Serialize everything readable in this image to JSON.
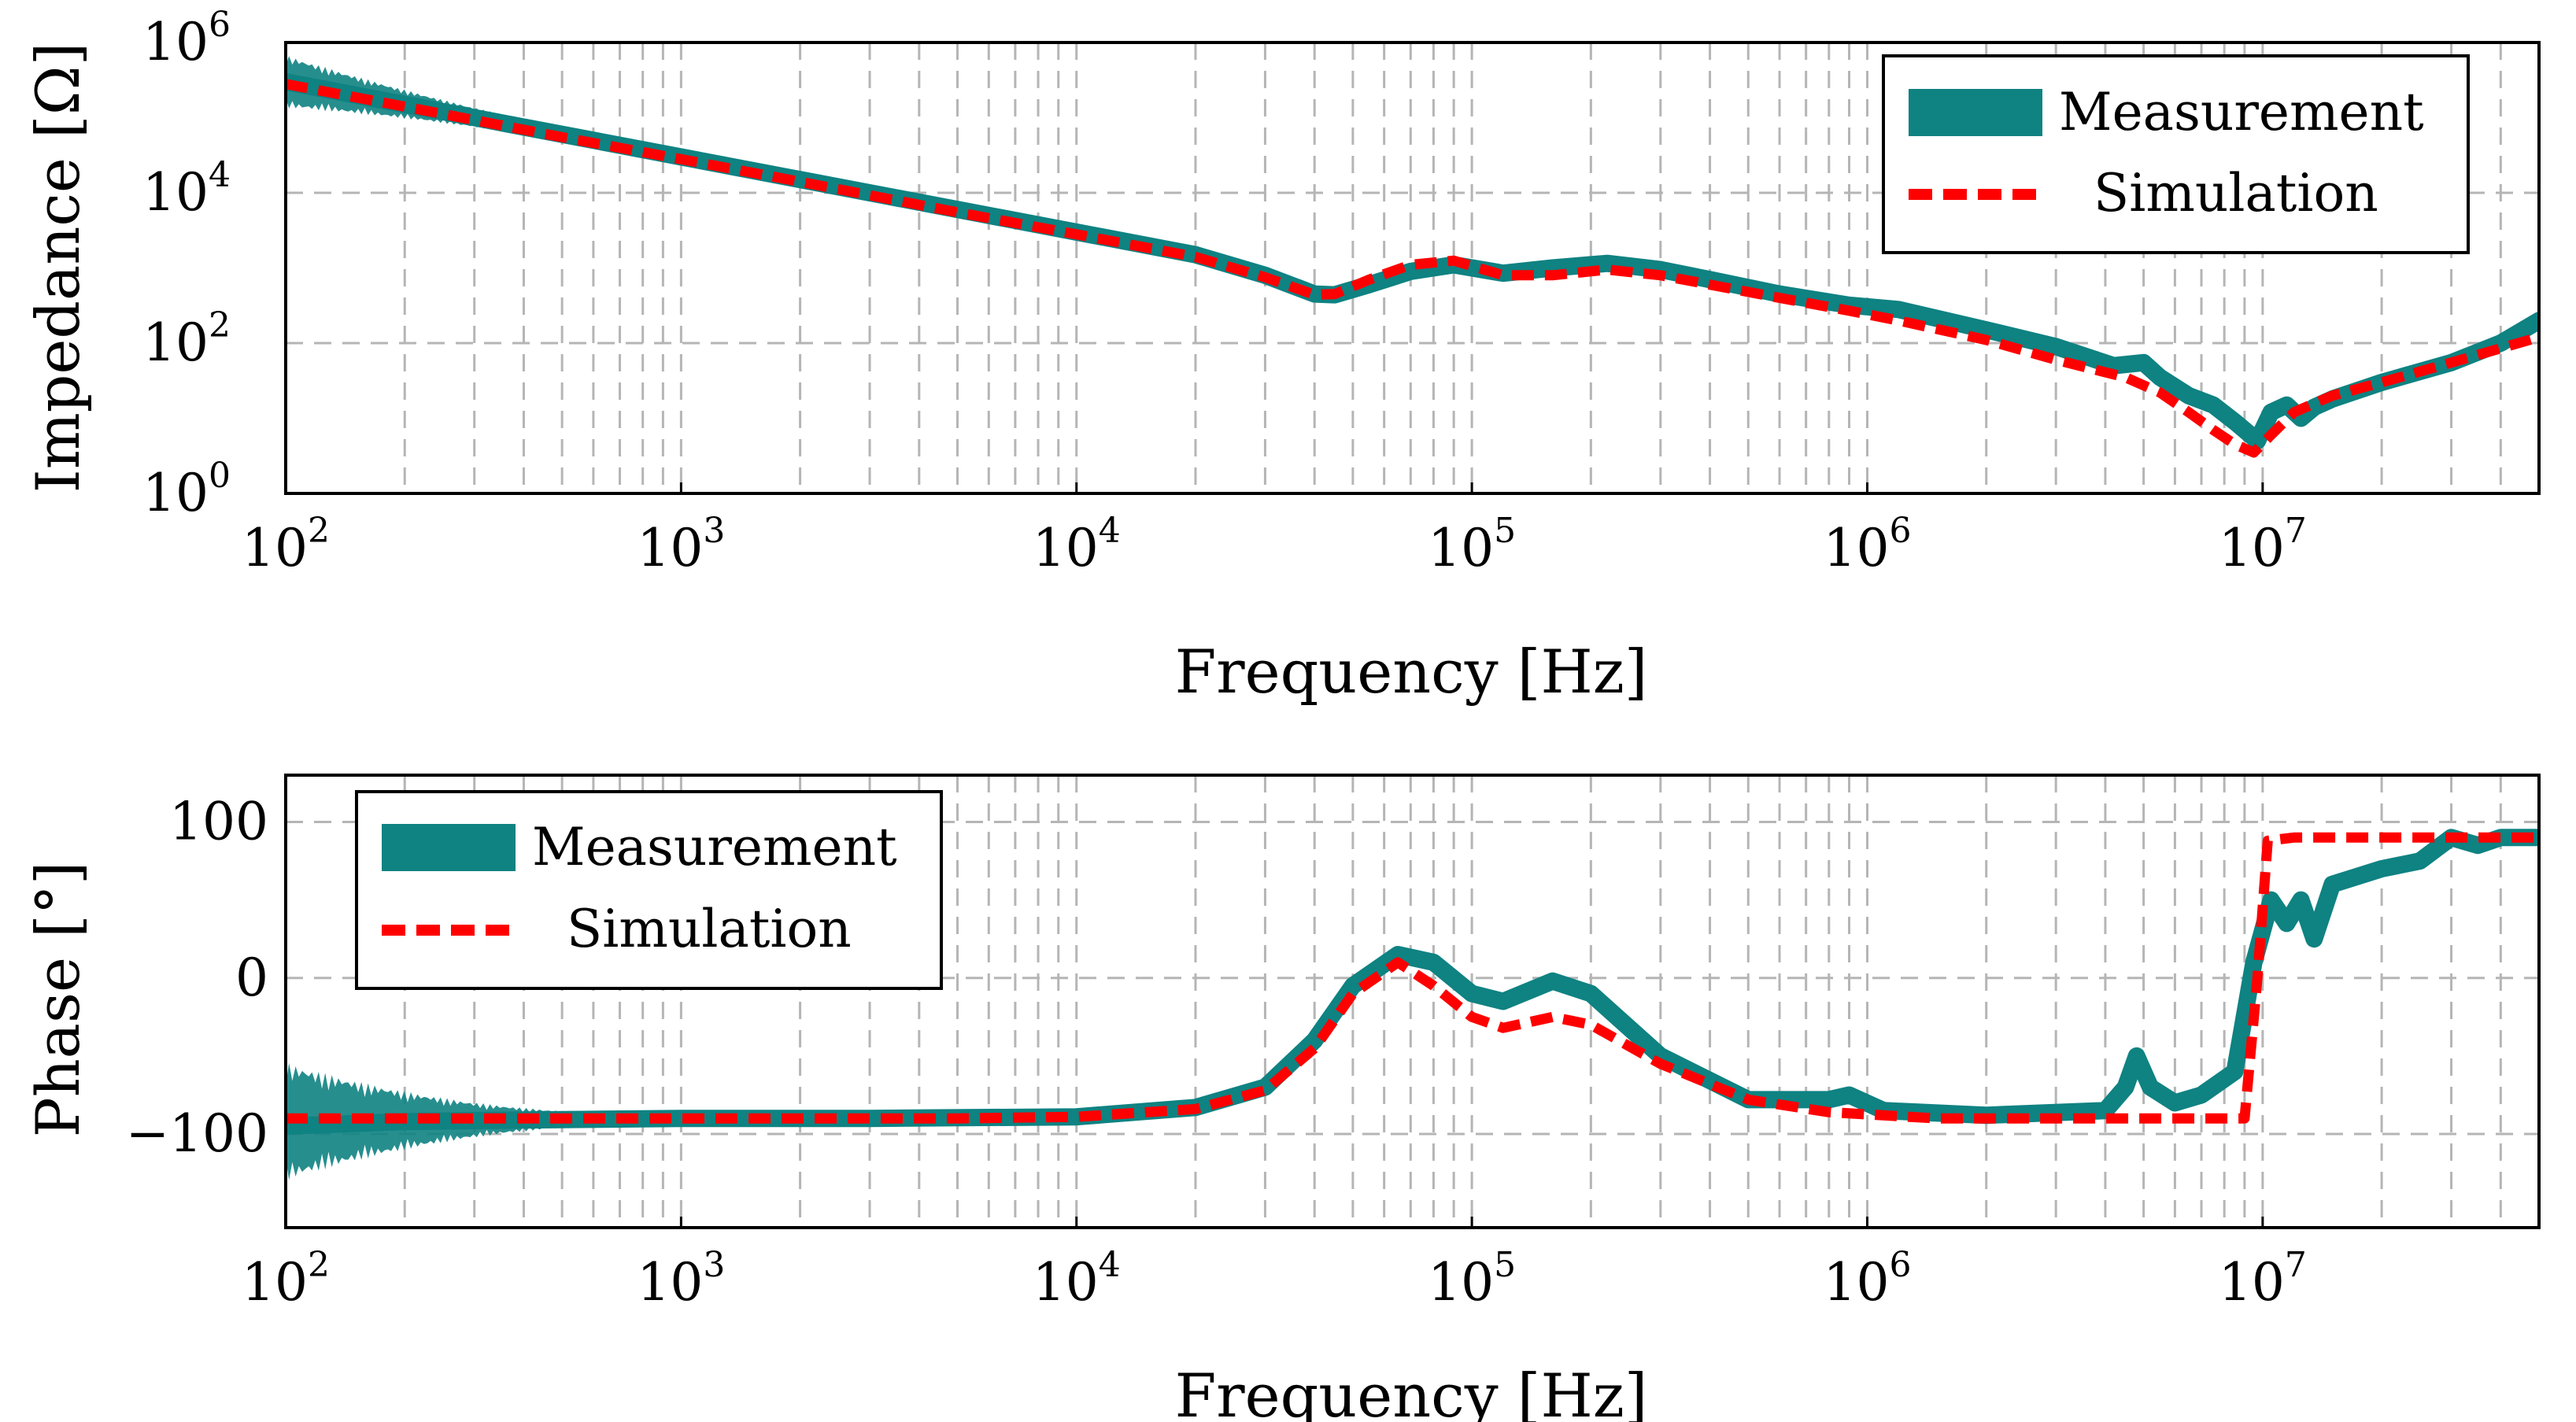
{
  "chart_data": [
    {
      "type": "line",
      "title": "",
      "xlabel": "Frequency [Hz]",
      "ylabel": "Impedance [Ω]",
      "xscale": "log",
      "yscale": "log",
      "xlim": [
        100,
        50000000
      ],
      "ylim": [
        1,
        1000000
      ],
      "grid": true,
      "legend_position": "top-right",
      "x_tick_labels": [
        {
          "base": "10",
          "exp": "2"
        },
        {
          "base": "10",
          "exp": "3"
        },
        {
          "base": "10",
          "exp": "4"
        },
        {
          "base": "10",
          "exp": "5"
        },
        {
          "base": "10",
          "exp": "6"
        },
        {
          "base": "10",
          "exp": "7"
        }
      ],
      "y_tick_labels": [
        {
          "base": "10",
          "exp": "0"
        },
        {
          "base": "10",
          "exp": "2"
        },
        {
          "base": "10",
          "exp": "4"
        },
        {
          "base": "10",
          "exp": "6"
        }
      ],
      "series": [
        {
          "name": "Measurement",
          "style": "solid-thick",
          "color": "#0f8282",
          "x": [
            100,
            150,
            200,
            300,
            500,
            1000,
            2000,
            5000,
            10000,
            20000,
            30000,
            40000,
            45000,
            55000,
            70000,
            90000,
            120000,
            160000,
            220000,
            300000,
            400000,
            600000,
            900000,
            1200000,
            2000000,
            3000000,
            4200000,
            5000000,
            5500000,
            6500000,
            7500000,
            8500000,
            9700000,
            10500000,
            11500000,
            12500000,
            13500000,
            15000000,
            20000000,
            30000000,
            40000000,
            50000000
          ],
          "y": [
            300000,
            200000,
            150000,
            100000,
            60000,
            30000,
            15000,
            6000,
            3000,
            1500,
            800,
            450,
            440,
            600,
            900,
            1100,
            850,
            1000,
            1150,
            950,
            700,
            450,
            320,
            280,
            150,
            90,
            50,
            55,
            35,
            20,
            15,
            9,
            5,
            12,
            15,
            10,
            14,
            18,
            30,
            55,
            100,
            200
          ]
        },
        {
          "name": "Simulation",
          "style": "dashed",
          "color": "#ff0000",
          "x": [
            100,
            200,
            500,
            1000,
            2000,
            5000,
            10000,
            20000,
            30000,
            40000,
            45000,
            55000,
            70000,
            90000,
            120000,
            160000,
            220000,
            300000,
            400000,
            600000,
            900000,
            1200000,
            2000000,
            3000000,
            4500000,
            5500000,
            6500000,
            7500000,
            8500000,
            9500000,
            10500000,
            12000000,
            15000000,
            20000000,
            30000000,
            50000000
          ],
          "y": [
            280000,
            140000,
            55000,
            28000,
            14000,
            5500,
            2800,
            1400,
            750,
            440,
            450,
            700,
            1100,
            1250,
            800,
            800,
            950,
            800,
            600,
            400,
            270,
            200,
            110,
            60,
            35,
            22,
            12,
            7,
            4.5,
            3.5,
            6,
            12,
            20,
            30,
            55,
            120
          ]
        }
      ]
    },
    {
      "type": "line",
      "title": "",
      "xlabel": "Frequency [Hz]",
      "ylabel": "Phase [°]",
      "xscale": "log",
      "yscale": "linear",
      "xlim": [
        100,
        50000000
      ],
      "ylim": [
        -160,
        130
      ],
      "grid": true,
      "legend_position": "top-left",
      "x_tick_labels": [
        {
          "base": "10",
          "exp": "2"
        },
        {
          "base": "10",
          "exp": "3"
        },
        {
          "base": "10",
          "exp": "4"
        },
        {
          "base": "10",
          "exp": "5"
        },
        {
          "base": "10",
          "exp": "6"
        },
        {
          "base": "10",
          "exp": "7"
        }
      ],
      "y_ticks": [
        -100,
        0,
        100
      ],
      "y_tick_labels": [
        "−100",
        "0",
        "100"
      ],
      "series": [
        {
          "name": "Measurement",
          "style": "solid-thick",
          "color": "#0f8282",
          "x": [
            100,
            200,
            400,
            1000,
            3000,
            10000,
            20000,
            30000,
            40000,
            50000,
            65000,
            80000,
            100000,
            120000,
            160000,
            200000,
            300000,
            500000,
            800000,
            900000,
            1100000,
            2000000,
            4000000,
            4500000,
            4800000,
            5200000,
            6000000,
            7000000,
            8500000,
            9500000,
            10500000,
            11500000,
            12500000,
            13500000,
            15000000,
            20000000,
            25000000,
            30000000,
            35000000,
            40000000,
            50000000
          ],
          "y": [
            -95,
            -92,
            -91,
            -90,
            -90,
            -89,
            -83,
            -70,
            -40,
            -5,
            15,
            10,
            -10,
            -15,
            -2,
            -10,
            -50,
            -78,
            -78,
            -75,
            -85,
            -88,
            -85,
            -70,
            -50,
            -70,
            -80,
            -75,
            -60,
            10,
            50,
            35,
            50,
            25,
            60,
            70,
            75,
            90,
            85,
            90,
            90
          ]
        },
        {
          "name": "Simulation",
          "style": "dashed",
          "color": "#ff0000",
          "x": [
            100,
            1000,
            5000,
            10000,
            20000,
            30000,
            40000,
            50000,
            65000,
            80000,
            100000,
            120000,
            160000,
            200000,
            300000,
            500000,
            800000,
            1500000,
            3000000,
            6000000,
            9000000,
            9700000,
            10300000,
            12000000,
            20000000,
            50000000
          ],
          "y": [
            -90,
            -90,
            -90,
            -89,
            -84,
            -72,
            -45,
            -10,
            10,
            -5,
            -25,
            -32,
            -25,
            -30,
            -55,
            -78,
            -86,
            -90,
            -90,
            -90,
            -90,
            0,
            88,
            90,
            90,
            90
          ]
        }
      ]
    }
  ]
}
